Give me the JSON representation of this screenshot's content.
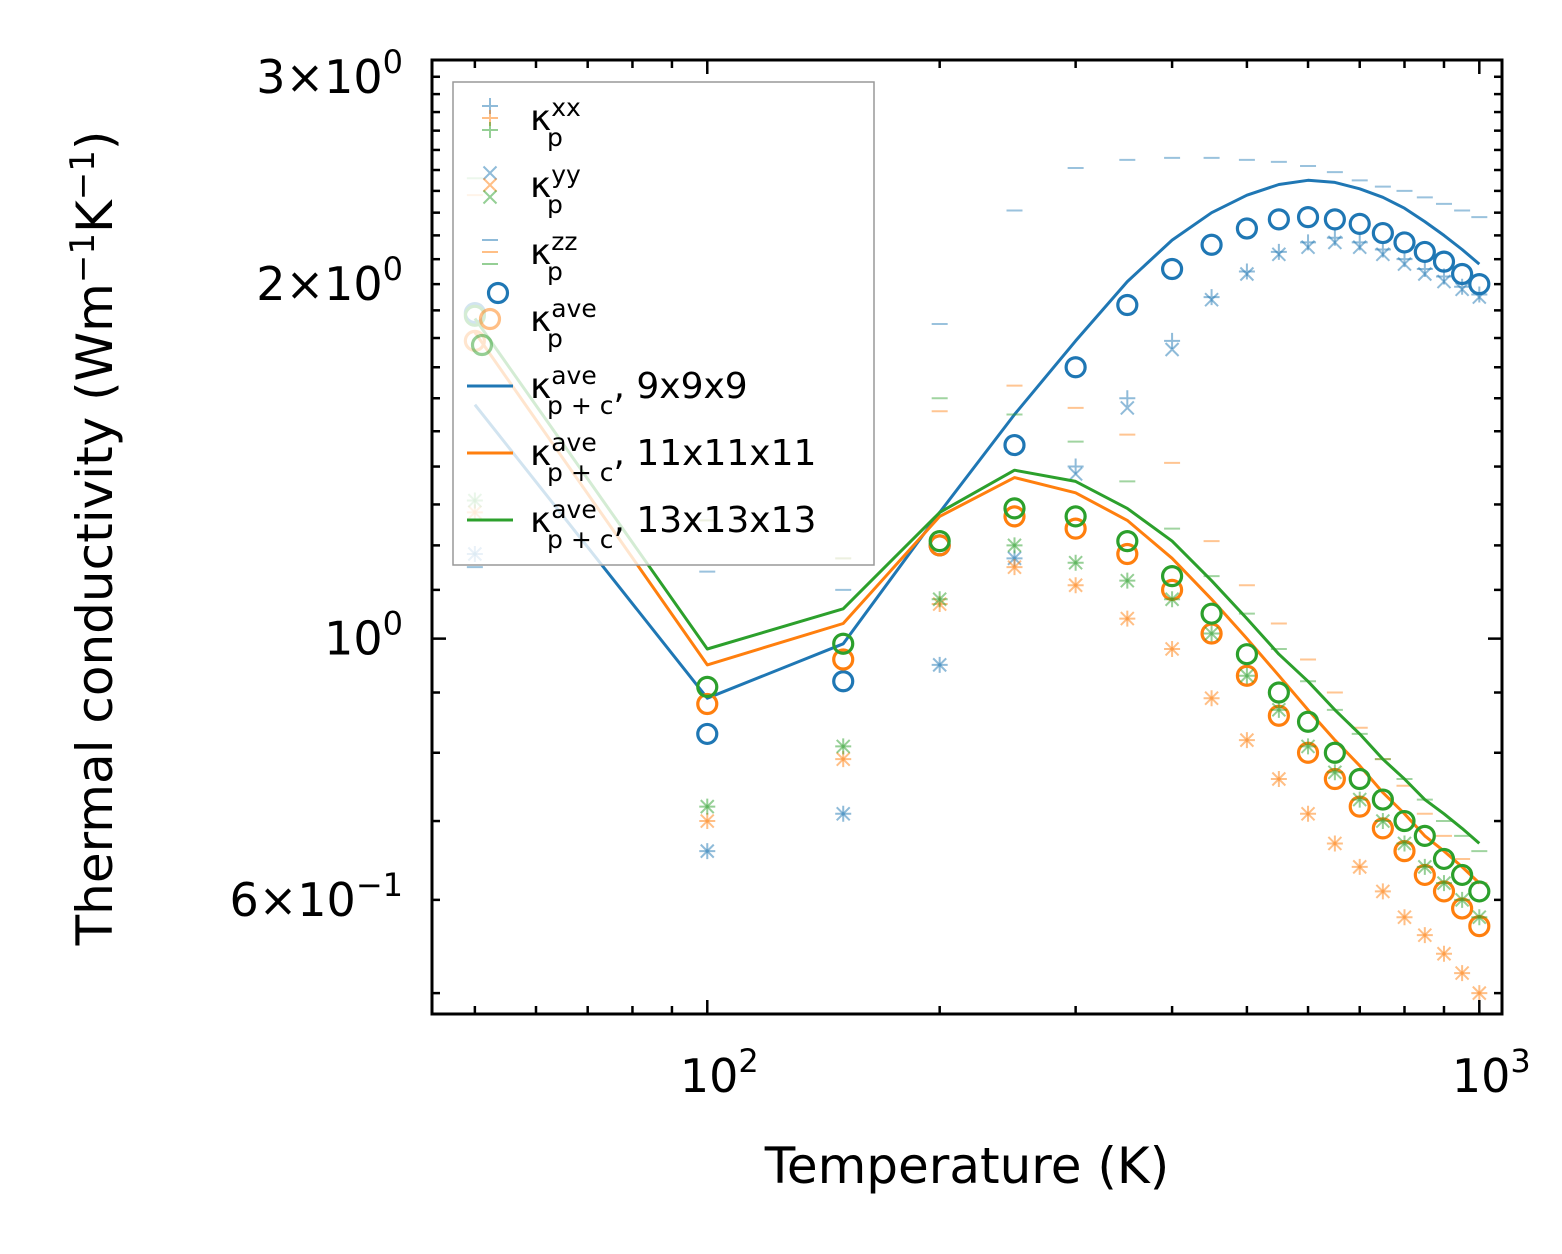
{
  "chart_data": {
    "type": "scatter+line",
    "xscale": "log",
    "yscale": "log",
    "xlabel": "Temperature (K)",
    "ylabel": "Thermal conductivity (Wm",
    "ylabel_unit_parts": [
      "−1",
      "K",
      "−1",
      ")"
    ],
    "xlim": [
      44,
      1070
    ],
    "ylim": [
      0.48,
      3.1
    ],
    "xticks": [
      {
        "value": 100,
        "base": "10",
        "exp": "2"
      },
      {
        "value": 1000,
        "base": "10",
        "exp": "3"
      }
    ],
    "yticks": [
      {
        "value": 3.0,
        "mant": "3×10",
        "exp": "0"
      },
      {
        "value": 2.0,
        "mant": "2×10",
        "exp": "0"
      },
      {
        "value": 1.0,
        "mant": "10",
        "exp": "0"
      },
      {
        "value": 0.6,
        "mant": "6×10",
        "exp": "−1"
      }
    ],
    "colors": {
      "9x9x9": "#1f77b4",
      "11x11x11": "#ff7f0e",
      "13x13x13": "#2ca02c"
    },
    "legend": {
      "position": "upper-left",
      "entries": [
        {
          "marker": "plus",
          "base": "κ",
          "sub": "p",
          "sup": "xx",
          "tail": ""
        },
        {
          "marker": "x",
          "base": "κ",
          "sub": "p",
          "sup": "yy",
          "tail": ""
        },
        {
          "marker": "dash",
          "base": "κ",
          "sub": "p",
          "sup": "zz",
          "tail": ""
        },
        {
          "marker": "circle",
          "base": "κ",
          "sub": "p",
          "sup": "ave",
          "tail": ""
        },
        {
          "marker": "line",
          "base": "κ",
          "sub": "p + c",
          "sup": "ave",
          "tail": ", 9x9x9"
        },
        {
          "marker": "line",
          "base": "κ",
          "sub": "p + c",
          "sup": "ave",
          "tail": ", 11x11x11"
        },
        {
          "marker": "line",
          "base": "κ",
          "sub": "p + c",
          "sup": "ave",
          "tail": ", 13x13x13"
        }
      ]
    },
    "x": [
      50,
      100,
      150,
      200,
      250,
      300,
      350,
      400,
      450,
      500,
      550,
      600,
      650,
      700,
      750,
      800,
      850,
      900,
      950,
      1000
    ],
    "series": [
      {
        "name": "9x9x9",
        "color_key": "9x9x9",
        "kxx": [
          1.18,
          0.66,
          0.71,
          0.95,
          1.17,
          1.4,
          1.6,
          1.79,
          1.95,
          2.05,
          2.13,
          2.17,
          2.19,
          2.17,
          2.14,
          2.1,
          2.06,
          2.03,
          1.99,
          1.96
        ],
        "kyy": [
          1.18,
          0.66,
          0.71,
          0.95,
          1.17,
          1.38,
          1.57,
          1.76,
          1.94,
          2.04,
          2.12,
          2.15,
          2.17,
          2.15,
          2.12,
          2.08,
          2.04,
          2.01,
          1.98,
          1.95
        ],
        "kzz": [
          1.15,
          1.14,
          1.1,
          1.85,
          2.31,
          2.51,
          2.55,
          2.56,
          2.56,
          2.55,
          2.54,
          2.52,
          2.49,
          2.45,
          2.42,
          2.4,
          2.37,
          2.34,
          2.31,
          2.28
        ],
        "kave": [
          1.89,
          0.83,
          0.92,
          1.2,
          1.46,
          1.7,
          1.92,
          2.06,
          2.16,
          2.23,
          2.27,
          2.28,
          2.27,
          2.25,
          2.21,
          2.17,
          2.13,
          2.09,
          2.04,
          2.0
        ],
        "kpc": [
          1.58,
          0.89,
          0.99,
          1.28,
          1.55,
          1.79,
          2.01,
          2.18,
          2.3,
          2.38,
          2.43,
          2.45,
          2.44,
          2.41,
          2.37,
          2.32,
          2.26,
          2.2,
          2.14,
          2.08
        ]
      },
      {
        "name": "11x11x11",
        "color_key": "11x11x11",
        "kxx": [
          1.28,
          0.7,
          0.79,
          1.07,
          1.15,
          1.11,
          1.04,
          0.98,
          0.89,
          0.82,
          0.76,
          0.71,
          0.67,
          0.64,
          0.61,
          0.58,
          0.56,
          0.54,
          0.52,
          0.5
        ],
        "kyy": [
          1.28,
          0.7,
          0.79,
          1.07,
          1.15,
          1.11,
          1.04,
          0.98,
          0.89,
          0.82,
          0.76,
          0.71,
          0.67,
          0.64,
          0.61,
          0.58,
          0.56,
          0.54,
          0.52,
          0.5
        ],
        "kzz": [
          2.38,
          1.26,
          1.17,
          1.56,
          1.64,
          1.57,
          1.49,
          1.41,
          1.21,
          1.11,
          1.03,
          0.96,
          0.9,
          0.84,
          0.79,
          0.75,
          0.71,
          0.68,
          0.65,
          0.62
        ],
        "kave": [
          1.79,
          0.88,
          0.96,
          1.2,
          1.27,
          1.24,
          1.18,
          1.1,
          1.01,
          0.93,
          0.86,
          0.8,
          0.76,
          0.72,
          0.69,
          0.66,
          0.63,
          0.61,
          0.59,
          0.57
        ],
        "kpc": [
          1.82,
          0.95,
          1.03,
          1.27,
          1.37,
          1.33,
          1.26,
          1.17,
          1.08,
          1.0,
          0.93,
          0.87,
          0.82,
          0.78,
          0.74,
          0.71,
          0.68,
          0.66,
          0.64,
          0.62
        ]
      },
      {
        "name": "13x13x13",
        "color_key": "13x13x13",
        "kxx": [
          1.31,
          0.72,
          0.81,
          1.08,
          1.2,
          1.16,
          1.12,
          1.08,
          1.01,
          0.93,
          0.87,
          0.81,
          0.77,
          0.73,
          0.7,
          0.67,
          0.64,
          0.62,
          0.6,
          0.58
        ],
        "kyy": [
          1.31,
          0.72,
          0.81,
          1.08,
          1.2,
          1.16,
          1.12,
          1.08,
          1.01,
          0.93,
          0.87,
          0.81,
          0.77,
          0.73,
          0.7,
          0.67,
          0.64,
          0.62,
          0.6,
          0.58
        ],
        "kzz": [
          2.46,
          1.26,
          1.17,
          1.6,
          1.55,
          1.47,
          1.36,
          1.24,
          1.13,
          1.05,
          0.98,
          0.92,
          0.87,
          0.83,
          0.79,
          0.76,
          0.73,
          0.7,
          0.68,
          0.66
        ],
        "kave": [
          1.88,
          0.91,
          0.99,
          1.21,
          1.29,
          1.27,
          1.21,
          1.13,
          1.05,
          0.97,
          0.9,
          0.85,
          0.8,
          0.76,
          0.73,
          0.7,
          0.68,
          0.65,
          0.63,
          0.61
        ],
        "kpc": [
          1.87,
          0.98,
          1.06,
          1.28,
          1.39,
          1.36,
          1.29,
          1.21,
          1.12,
          1.04,
          0.97,
          0.92,
          0.87,
          0.83,
          0.79,
          0.76,
          0.73,
          0.71,
          0.69,
          0.67
        ]
      }
    ]
  }
}
